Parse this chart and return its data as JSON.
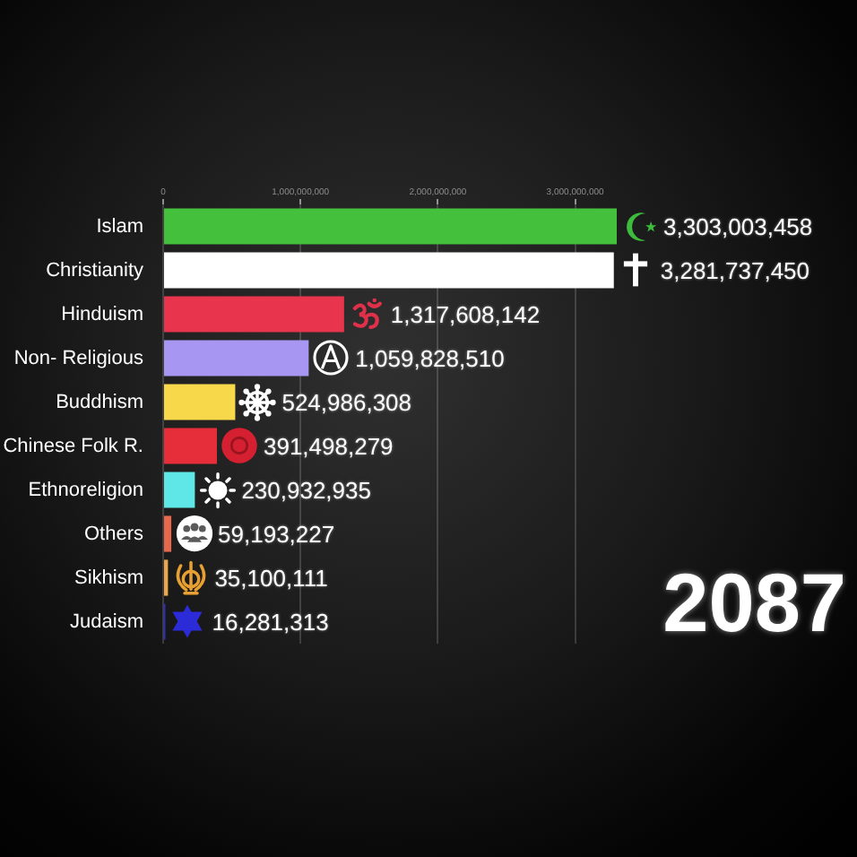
{
  "chart_data": {
    "type": "bar",
    "orientation": "horizontal",
    "categories": [
      "Islam",
      "Christianity",
      "Hinduism",
      "Non- Religious",
      "Buddhism",
      "Chinese Folk R.",
      "Ethnoreligion",
      "Others",
      "Sikhism",
      "Judaism"
    ],
    "values": [
      3303003458,
      3281737450,
      1317608142,
      1059828510,
      524986308,
      391498279,
      230932935,
      59193227,
      35100111,
      16281313
    ],
    "colors": [
      "#45c03c",
      "#ffffff",
      "#e8344c",
      "#a897f2",
      "#f7d84a",
      "#e62e3a",
      "#5fe6e6",
      "#e8684e",
      "#eaa84a",
      "#2b2bd8"
    ],
    "value_labels": [
      "3,303,003,458",
      "3,281,737,450",
      "1,317,608,142",
      "1,059,828,510",
      "524,986,308",
      "391,498,279",
      "230,932,935",
      "59,193,227",
      "35,100,111",
      "16,281,313"
    ],
    "xlim": [
      0,
      3303003458
    ],
    "xticks": [
      0,
      {
        "value": 1000000000,
        "label": "1,000,000,000"
      },
      {
        "value": 2000000000,
        "label": "2,000,000,000"
      },
      {
        "value": 3000000000,
        "label": "3,000,000,000"
      }
    ],
    "grid": "x",
    "annotations": [
      "2087"
    ]
  }
}
